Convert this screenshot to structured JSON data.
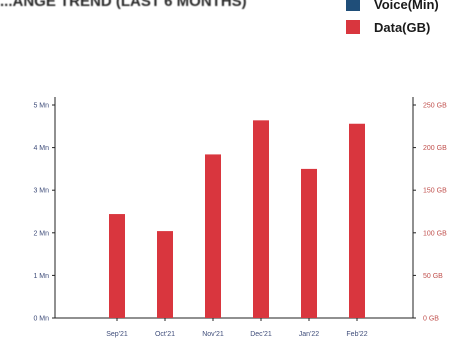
{
  "chart_data": {
    "type": "bar",
    "title": "",
    "categories": [
      "Sep'21",
      "Oct'21",
      "Nov'21",
      "Dec'21",
      "Jan'22",
      "Feb'22"
    ],
    "series": [
      {
        "name": "Voice(Min)",
        "axis": "left",
        "color": "#1f4e79",
        "values": [
          0,
          0,
          0,
          0,
          0,
          0
        ]
      },
      {
        "name": "Data(GB)",
        "axis": "right",
        "color": "#d9363e",
        "values": [
          122,
          102,
          192,
          232,
          175,
          228
        ]
      }
    ],
    "y_left": {
      "ticks": [
        "0 Mn",
        "1 Mn",
        "2 Mn",
        "3 Mn",
        "4 Mn",
        "5 Mn"
      ],
      "ylim": [
        0,
        5
      ]
    },
    "y_right": {
      "ticks": [
        "0 GB",
        "50 GB",
        "100 GB",
        "150 GB",
        "200 GB",
        "250 GB"
      ],
      "ylim": [
        0,
        250
      ]
    },
    "legend": "top-right",
    "grid": false
  },
  "header": {
    "title_fragment": "...ANGE TREND (LAST 6 MONTHS)"
  }
}
